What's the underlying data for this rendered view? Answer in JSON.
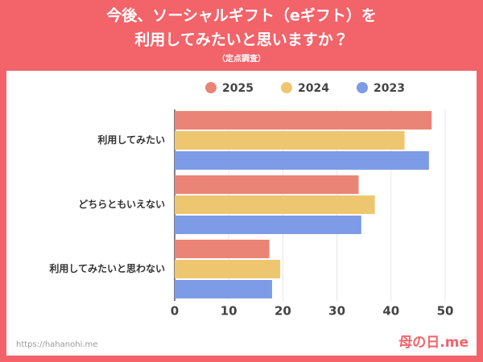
{
  "chart_data": {
    "type": "bar",
    "orientation": "horizontal",
    "title": [
      "今後、ソーシャルギフト（eギフト）を",
      "利用してみたいと思いますか？"
    ],
    "subtitle": "（定点調査）",
    "categories": [
      "利用してみたい",
      "どちらともいえない",
      "利用してみたいと思わない"
    ],
    "series": [
      {
        "name": "2025",
        "color": "#ea8476",
        "values": [
          47.5,
          34,
          17.5
        ]
      },
      {
        "name": "2024",
        "color": "#efc670",
        "values": [
          42.5,
          37,
          19.5
        ]
      },
      {
        "name": "2023",
        "color": "#7d9be6",
        "values": [
          47,
          34.5,
          18
        ]
      }
    ],
    "xlim": [
      0,
      50
    ],
    "xticks": [
      0,
      10,
      20,
      30,
      40,
      50
    ],
    "grid": true,
    "legend": "top"
  },
  "footer": {
    "url": "https://hahanohi.me",
    "logo": "母の日.me"
  }
}
